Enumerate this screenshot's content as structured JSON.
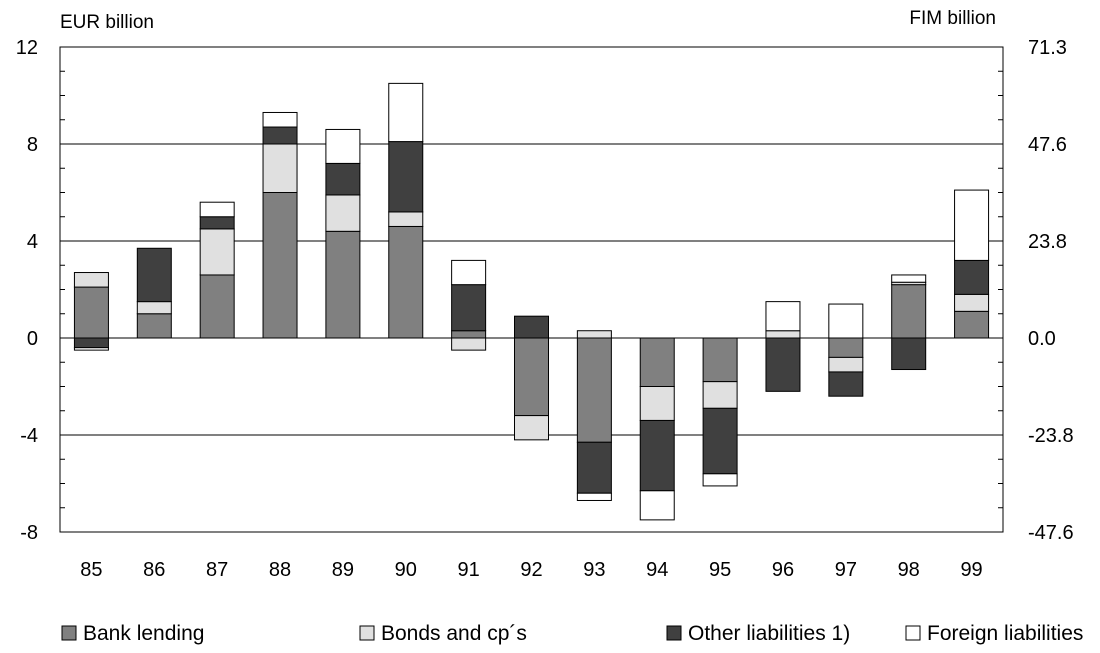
{
  "chart_data": {
    "type": "bar",
    "stacked": true,
    "left_axis_unit": "EUR billion",
    "right_axis_unit": "FIM billion",
    "categories": [
      "85",
      "86",
      "87",
      "88",
      "89",
      "90",
      "91",
      "92",
      "93",
      "94",
      "95",
      "96",
      "97",
      "98",
      "99"
    ],
    "ylim": [
      -8,
      12
    ],
    "y_ticks": [
      12,
      8,
      4,
      0,
      -4,
      -8
    ],
    "y_tick_labels": [
      "12",
      "8",
      "4",
      "0",
      "-4",
      "-8"
    ],
    "right_tick_labels": [
      "71.3",
      "47.6",
      "23.8",
      "0.0",
      "-23.8",
      "-47.6"
    ],
    "gridlines_at": [
      8,
      4,
      0,
      -4
    ],
    "legend_position": "bottom",
    "series": [
      {
        "name": "Bank lending",
        "color": "#808080",
        "values": [
          2.1,
          1.0,
          2.6,
          6.0,
          4.4,
          4.6,
          0.3,
          -3.2,
          -4.3,
          -2.0,
          -1.8,
          0.0,
          -0.8,
          2.2,
          1.1
        ]
      },
      {
        "name": "Bonds and cp´s",
        "color": "#e0e0e0",
        "values": [
          0.6,
          0.5,
          1.9,
          2.0,
          1.5,
          0.6,
          -0.5,
          -1.0,
          0.3,
          -1.4,
          -1.1,
          0.3,
          -0.6,
          0.1,
          0.7
        ]
      },
      {
        "name": "Other liabilities 1)",
        "color": "#404040",
        "values": [
          -0.4,
          2.2,
          0.5,
          0.7,
          1.3,
          2.9,
          1.9,
          0.9,
          -2.1,
          -2.9,
          -2.7,
          -2.2,
          -1.0,
          -1.3,
          1.4
        ]
      },
      {
        "name": "Foreign liabilities",
        "color": "#ffffff",
        "values": [
          -0.1,
          0.0,
          0.6,
          0.6,
          1.4,
          2.4,
          1.0,
          0.0,
          -0.3,
          -1.2,
          -0.5,
          1.2,
          1.4,
          0.3,
          2.9
        ]
      }
    ]
  }
}
